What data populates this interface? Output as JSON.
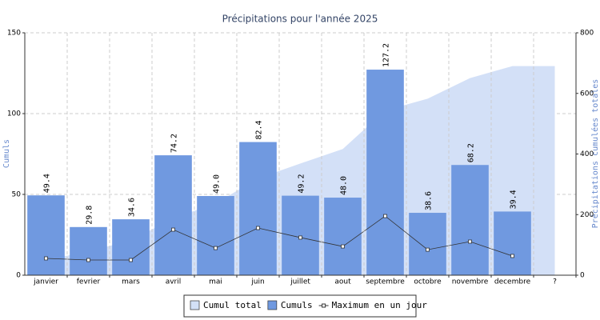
{
  "chart_data": {
    "type": "bar",
    "title": "Précipitations pour l'année 2025",
    "y_label": "Cumuls",
    "y2_label": "Précipitations cumulées totales",
    "categories": [
      "janvier",
      "fevrier",
      "mars",
      "avril",
      "mai",
      "juin",
      "juillet",
      "aout",
      "septembre",
      "octobre",
      "novembre",
      "decembre",
      "?"
    ],
    "series": [
      {
        "name": "Cumul total",
        "type": "area",
        "axis": "y2",
        "color": "#d3e0f7",
        "values": [
          49.4,
          79.2,
          113.8,
          188,
          237,
          319.4,
          368.6,
          416.6,
          543.8,
          582.4,
          650.6,
          690,
          690
        ]
      },
      {
        "name": "Cumuls",
        "type": "bar",
        "color": "#7099e0",
        "values": [
          49.4,
          29.8,
          34.6,
          74.2,
          49,
          82.4,
          49.2,
          48,
          127.2,
          38.6,
          68.2,
          39.4,
          null
        ],
        "value_labels": [
          "49.4",
          "29.8",
          "34.6",
          "74.2",
          "49.0",
          "82.4",
          "49.2",
          "48.0",
          "127.2",
          "38.6",
          "68.2",
          "39.4",
          null
        ]
      },
      {
        "name": "Maximum en un jour",
        "type": "line",
        "color": "#333333",
        "values": [
          10.4,
          9.4,
          9.4,
          28.2,
          16.8,
          29.2,
          23.3,
          17.8,
          36.6,
          15.8,
          20.8,
          11.9,
          null
        ]
      }
    ],
    "ylim": [
      0,
      150
    ],
    "yticks": [
      0,
      50,
      100,
      150
    ],
    "y2lim": [
      0,
      800
    ],
    "y2ticks": [
      0,
      200,
      400,
      600,
      800
    ],
    "grid": true,
    "legend": "bottom"
  }
}
